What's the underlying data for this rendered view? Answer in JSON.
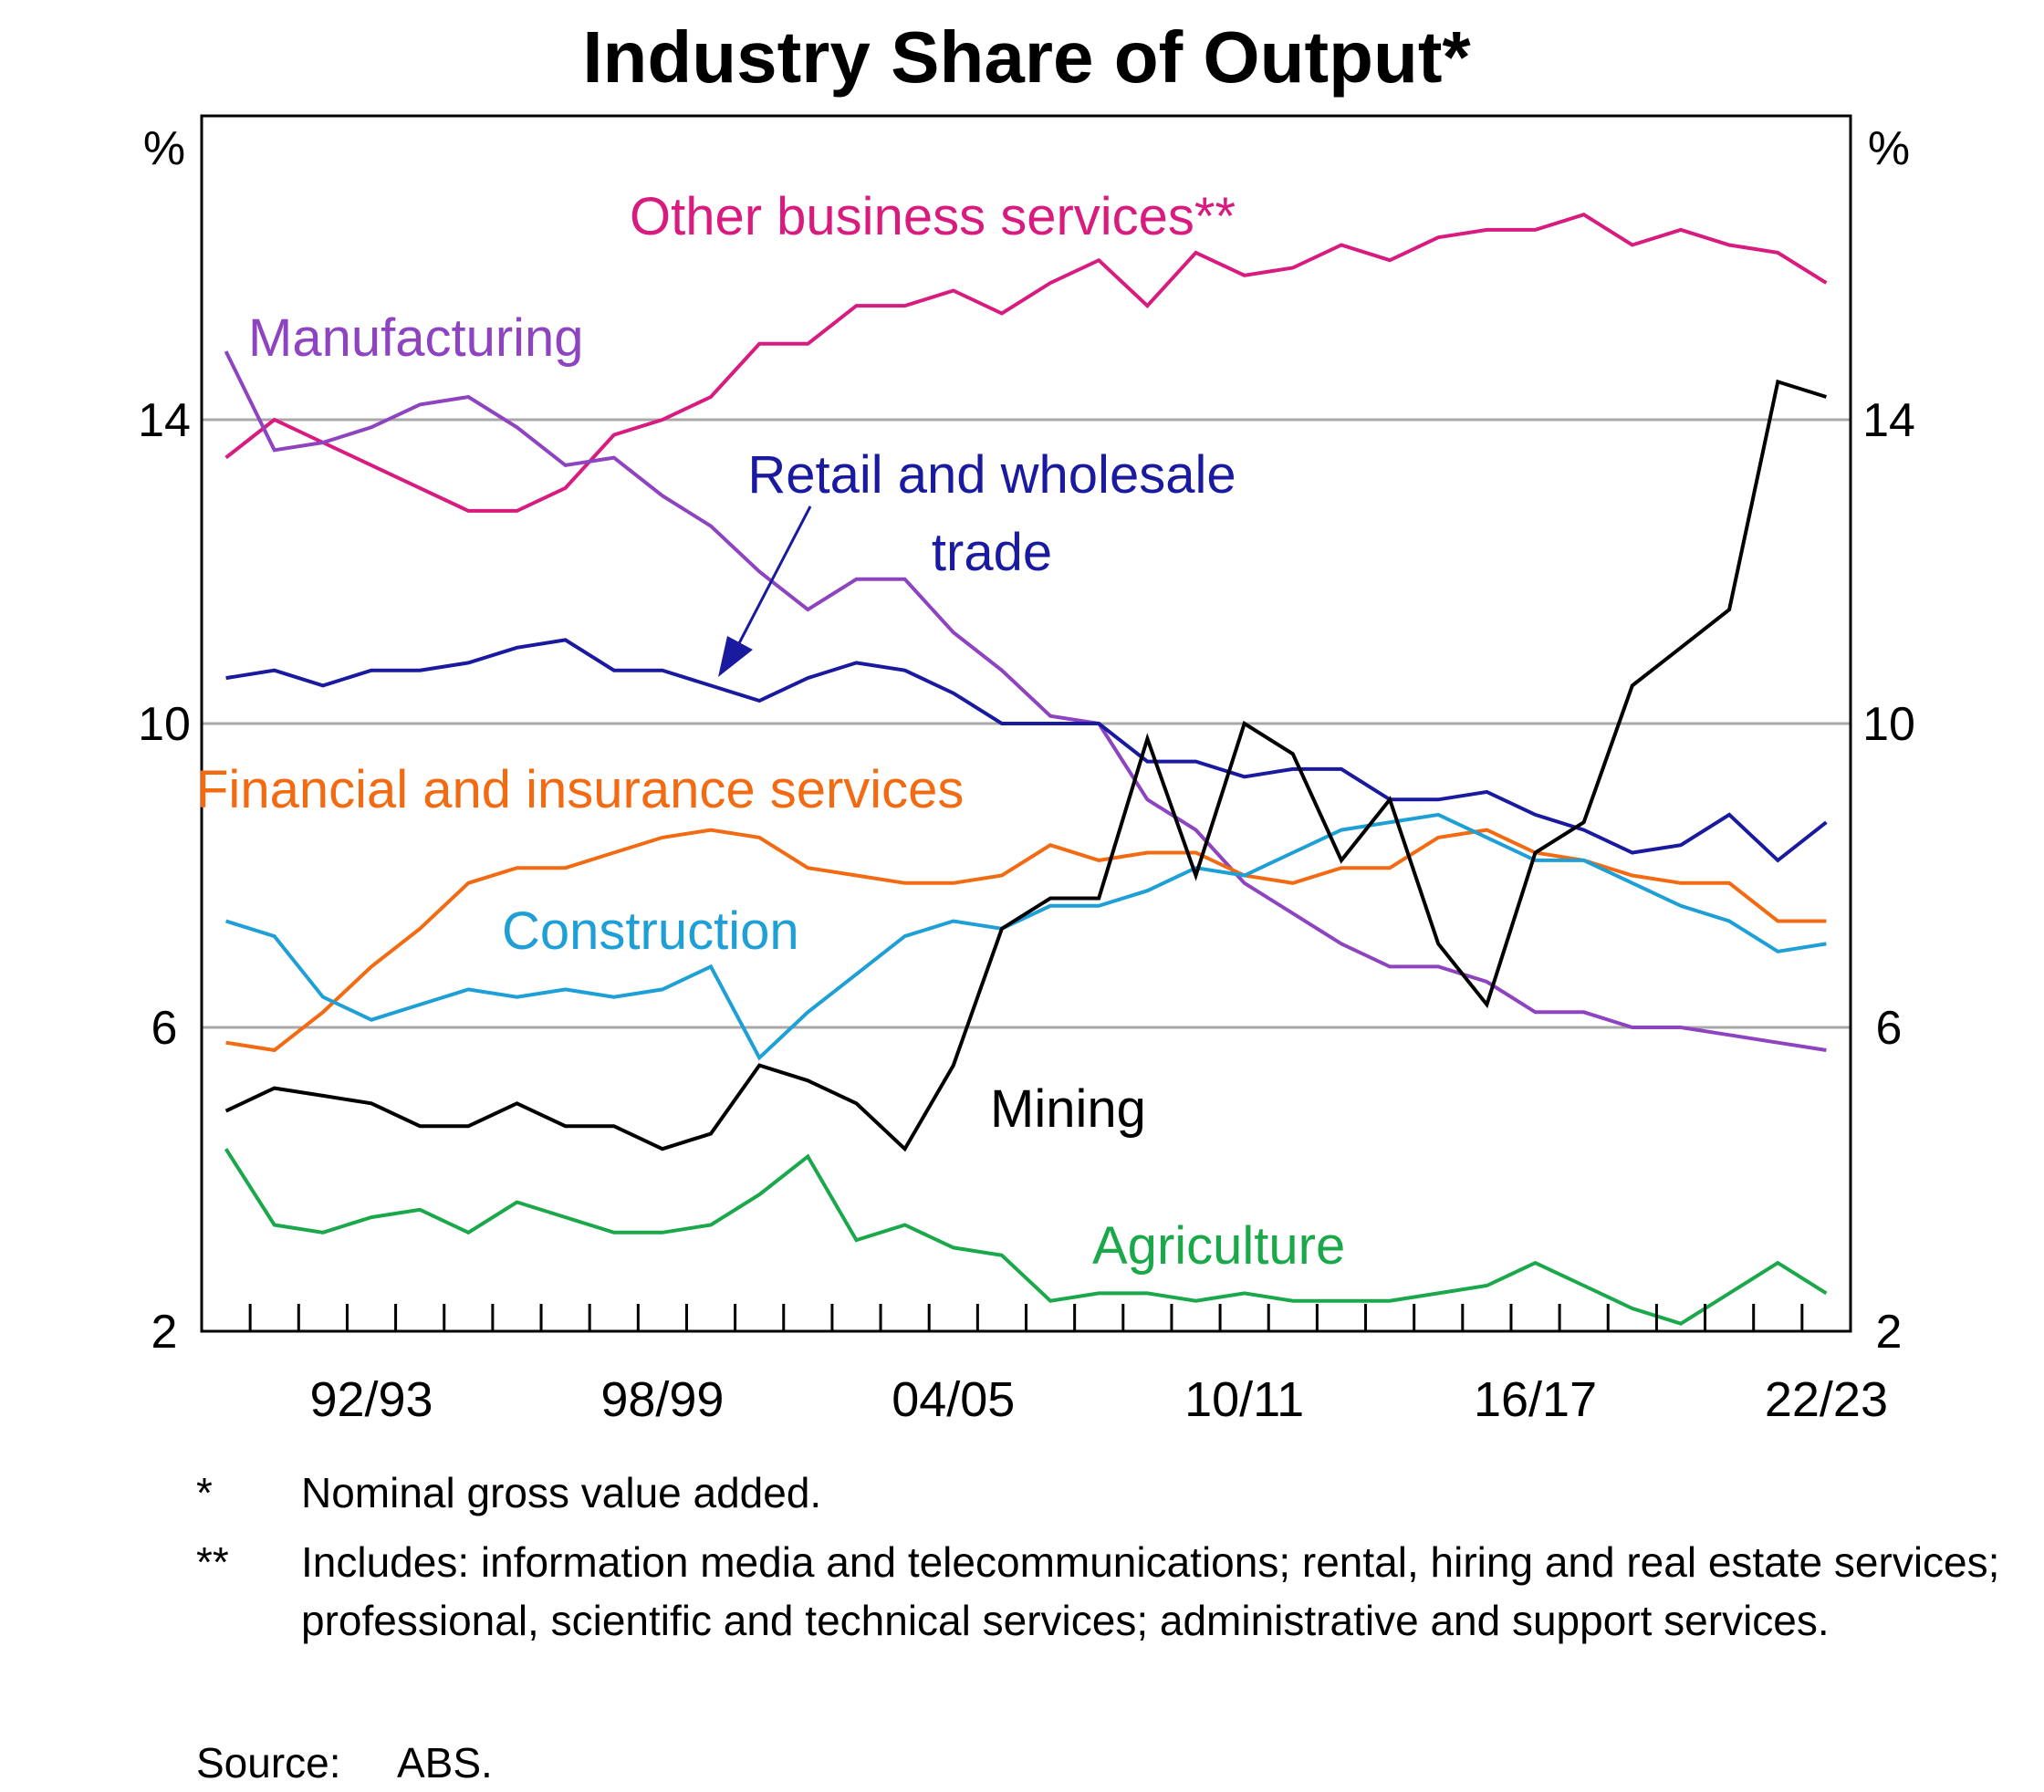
{
  "chart_data": {
    "type": "line",
    "title": "Industry Share of Output*",
    "ylabel_left": "%",
    "ylabel_right": "%",
    "ylim": [
      2,
      18
    ],
    "yticks": [
      "2",
      "6",
      "10",
      "14"
    ],
    "gridlines_y": [
      6,
      10,
      14
    ],
    "x_start_year": 1989,
    "x_end_year": 2023,
    "xtick_labels": [
      {
        "label": "92/93",
        "year": 1992
      },
      {
        "label": "98/99",
        "year": 1998
      },
      {
        "label": "04/05",
        "year": 2004
      },
      {
        "label": "10/11",
        "year": 2010
      },
      {
        "label": "16/17",
        "year": 2016
      },
      {
        "label": "22/23",
        "year": 2022
      }
    ],
    "series": [
      {
        "name": "Other business services**",
        "label": "Other business services**",
        "color": "#d81b7e",
        "values": [
          13.5,
          14.0,
          13.7,
          13.4,
          13.1,
          12.8,
          12.8,
          13.1,
          13.8,
          14.0,
          14.3,
          15.0,
          15.0,
          15.5,
          15.5,
          15.7,
          15.4,
          15.8,
          16.1,
          15.5,
          16.2,
          15.9,
          16.0,
          16.3,
          16.1,
          16.4,
          16.5,
          16.5,
          16.7,
          16.3,
          16.5,
          16.3,
          16.2,
          15.8
        ]
      },
      {
        "name": "Manufacturing",
        "label": "Manufacturing",
        "color": "#8e44c0",
        "values": [
          14.9,
          13.6,
          13.7,
          13.9,
          14.2,
          14.3,
          13.9,
          13.4,
          13.5,
          13.0,
          12.6,
          12.0,
          11.5,
          11.9,
          11.9,
          11.2,
          10.7,
          10.1,
          10.0,
          9.0,
          8.6,
          7.9,
          7.5,
          7.1,
          6.8,
          6.8,
          6.6,
          6.2,
          6.2,
          6.0,
          6.0,
          5.9,
          5.8,
          5.7
        ]
      },
      {
        "name": "Retail and wholesale trade",
        "label_line1": "Retail and wholesale",
        "label_line2": "trade",
        "color": "#1a1aa0",
        "values": [
          10.6,
          10.7,
          10.5,
          10.7,
          10.7,
          10.8,
          11.0,
          11.1,
          10.7,
          10.7,
          10.5,
          10.3,
          10.6,
          10.8,
          10.7,
          10.4,
          10.0,
          10.0,
          10.0,
          9.5,
          9.5,
          9.3,
          9.4,
          9.4,
          9.0,
          9.0,
          9.1,
          8.8,
          8.6,
          8.3,
          8.4,
          8.8,
          8.2,
          8.7
        ]
      },
      {
        "name": "Financial and insurance services",
        "label": "Financial and insurance services",
        "color": "#f26a12",
        "values": [
          5.8,
          5.7,
          6.2,
          6.8,
          7.3,
          7.9,
          8.1,
          8.1,
          8.3,
          8.5,
          8.6,
          8.5,
          8.1,
          8.0,
          7.9,
          7.9,
          8.0,
          8.4,
          8.2,
          8.3,
          8.3,
          8.0,
          7.9,
          8.1,
          8.1,
          8.5,
          8.6,
          8.3,
          8.2,
          8.0,
          7.9,
          7.9,
          7.4,
          7.4
        ]
      },
      {
        "name": "Construction",
        "label": "Construction",
        "color": "#1e9fd6",
        "values": [
          7.4,
          7.2,
          6.4,
          6.1,
          6.3,
          6.5,
          6.4,
          6.5,
          6.4,
          6.5,
          6.8,
          5.6,
          6.2,
          6.7,
          7.2,
          7.4,
          7.3,
          7.6,
          7.6,
          7.8,
          8.1,
          8.0,
          8.3,
          8.6,
          8.7,
          8.8,
          8.5,
          8.2,
          8.2,
          7.9,
          7.6,
          7.4,
          7.0,
          7.1
        ]
      },
      {
        "name": "Mining",
        "label": "Mining",
        "color": "#000000",
        "values": [
          4.9,
          5.2,
          5.1,
          5.0,
          4.7,
          4.7,
          5.0,
          4.7,
          4.7,
          4.4,
          4.6,
          5.5,
          5.3,
          5.0,
          4.4,
          5.5,
          7.3,
          7.7,
          7.7,
          9.8,
          8.0,
          10.0,
          9.6,
          8.2,
          9.0,
          7.1,
          6.3,
          8.3,
          8.7,
          10.5,
          11.0,
          11.5,
          14.5,
          14.3
        ]
      },
      {
        "name": "Agriculture",
        "label": "Agriculture",
        "color": "#1aa84a",
        "values": [
          4.4,
          3.4,
          3.3,
          3.5,
          3.6,
          3.3,
          3.7,
          3.5,
          3.3,
          3.3,
          3.4,
          3.8,
          4.3,
          3.2,
          3.4,
          3.1,
          3.0,
          2.4,
          2.5,
          2.5,
          2.4,
          2.5,
          2.4,
          2.4,
          2.4,
          2.5,
          2.6,
          2.9,
          2.6,
          2.3,
          2.1,
          2.5,
          2.9,
          2.5
        ]
      }
    ]
  },
  "footnotes": [
    {
      "mark": "*",
      "text": "Nominal gross value added."
    },
    {
      "mark": "**",
      "text": "Includes: information media and telecommunications; rental, hiring and real estate services; professional, scientific and technical services; administrative and support services."
    }
  ],
  "source": {
    "label": "Source:",
    "text": "ABS."
  }
}
